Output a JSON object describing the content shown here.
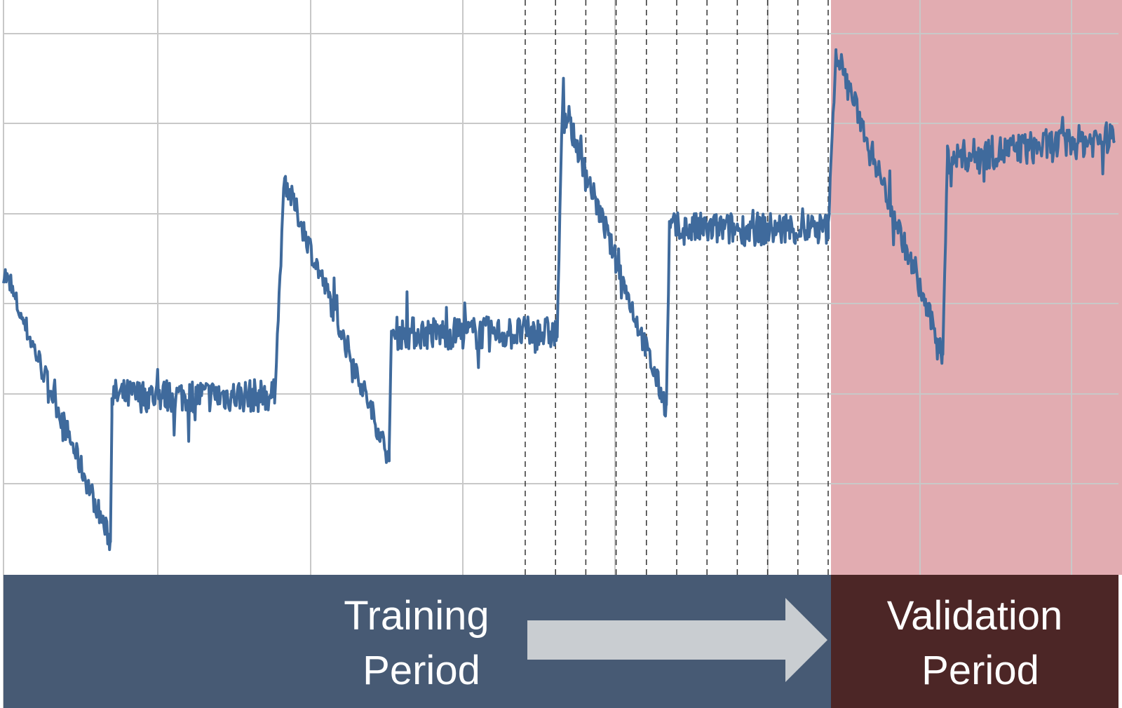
{
  "colors": {
    "series": "#3f6a9c",
    "grid": "#c8c8c8",
    "dashed": "#333333",
    "validation_region": "#e2acb1",
    "training_band": "#475a74",
    "validation_band": "#4c2626",
    "arrow": "#c9cdd1"
  },
  "labels": {
    "training": [
      "Training",
      "Period"
    ],
    "validation": [
      "Validation",
      "Period"
    ]
  },
  "chart_data": {
    "type": "line",
    "title": "",
    "xlabel": "",
    "ylabel": "",
    "xlim": [
      0,
      1460
    ],
    "ylim": [
      -70,
      100
    ],
    "grid": true,
    "legend": "none",
    "regions": [
      {
        "name": "training",
        "x_range": [
          0,
          1080
        ]
      },
      {
        "name": "validation",
        "x_range": [
          1080,
          1460
        ]
      }
    ],
    "series_shape": [
      {
        "x": [
          0,
          140
        ],
        "trend": [
          35,
          -30
        ],
        "noise": 3
      },
      {
        "x": [
          140,
          142
        ],
        "trend": [
          -30,
          5
        ],
        "noise": 2
      },
      {
        "x": [
          142,
          355
        ],
        "trend": [
          5,
          5
        ],
        "noise": 4
      },
      {
        "x": [
          355,
          368
        ],
        "trend": [
          5,
          57
        ],
        "noise": 2
      },
      {
        "x": [
          368,
          505
        ],
        "trend": [
          57,
          -10
        ],
        "noise": 3
      },
      {
        "x": [
          505,
          508
        ],
        "trend": [
          -10,
          20
        ],
        "noise": 2
      },
      {
        "x": [
          508,
          725
        ],
        "trend": [
          20,
          20
        ],
        "noise": 4
      },
      {
        "x": [
          725,
          732
        ],
        "trend": [
          20,
          75
        ],
        "noise": 2
      },
      {
        "x": [
          732,
          868
        ],
        "trend": [
          75,
          2
        ],
        "noise": 3
      },
      {
        "x": [
          868,
          872
        ],
        "trend": [
          2,
          45
        ],
        "noise": 2
      },
      {
        "x": [
          872,
          1080
        ],
        "trend": [
          45,
          45
        ],
        "noise": 4
      },
      {
        "x": [
          1080,
          1090
        ],
        "trend": [
          45,
          88
        ],
        "noise": 2
      },
      {
        "x": [
          1090,
          1230
        ],
        "trend": [
          88,
          15
        ],
        "noise": 3
      },
      {
        "x": [
          1230,
          1236
        ],
        "trend": [
          15,
          62
        ],
        "noise": 2
      },
      {
        "x": [
          1236,
          1455
        ],
        "trend": [
          62,
          67
        ],
        "noise": 4
      }
    ]
  }
}
